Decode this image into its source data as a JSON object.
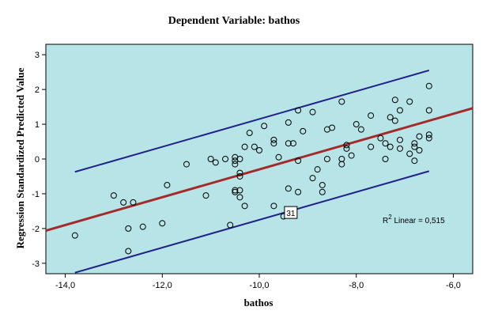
{
  "chart_data": {
    "type": "scatter",
    "title": "Dependent Variable: bathos",
    "xlabel": "bathos",
    "ylabel": "Regression Standardized Predicted Value",
    "xlim": [
      -14.4,
      -5.6
    ],
    "ylim": [
      -3.3,
      3.3
    ],
    "xticks": [
      "-14,0",
      "-12,0",
      "-10,0",
      "-8,0",
      "-6,0"
    ],
    "yticks": [
      "-3",
      "-2",
      "-1",
      "0",
      "1",
      "2",
      "3"
    ],
    "xtick_values": [
      -14,
      -12,
      -10,
      -8,
      -6
    ],
    "ytick_values": [
      -3,
      -2,
      -1,
      0,
      1,
      2,
      3
    ],
    "plot_background": "#b6e4e7",
    "fit_line_color": "#a52a2a",
    "ci_line_color": "#22208a",
    "fit_line": {
      "slope": 0.4,
      "intercept": 3.7
    },
    "upper_band": {
      "slope": 0.4,
      "intercept": 5.15
    },
    "lower_band": {
      "slope": 0.4,
      "intercept": 2.25
    },
    "r2_label": "R",
    "r2_sup": "2",
    "r2_rest": " Linear = 0,515",
    "labeled_point": {
      "label": "31",
      "x": -9.35,
      "y": -1.55
    },
    "points": [
      [
        -13.8,
        -2.2
      ],
      [
        -13.0,
        -1.05
      ],
      [
        -12.8,
        -1.25
      ],
      [
        -12.6,
        -1.25
      ],
      [
        -12.7,
        -2.0
      ],
      [
        -12.7,
        -2.65
      ],
      [
        -12.4,
        -1.95
      ],
      [
        -11.9,
        -0.75
      ],
      [
        -12.0,
        -1.85
      ],
      [
        -11.5,
        -0.15
      ],
      [
        -11.1,
        -1.05
      ],
      [
        -11.0,
        0.0
      ],
      [
        -10.9,
        -0.1
      ],
      [
        -10.7,
        0.0
      ],
      [
        -10.6,
        -1.9
      ],
      [
        -10.5,
        0.05
      ],
      [
        -10.5,
        -0.05
      ],
      [
        -10.5,
        -0.15
      ],
      [
        -10.5,
        -0.95
      ],
      [
        -10.5,
        -0.9
      ],
      [
        -10.4,
        -0.4
      ],
      [
        -10.4,
        -0.5
      ],
      [
        -10.4,
        -0.9
      ],
      [
        -10.4,
        -1.1
      ],
      [
        -10.4,
        0.0
      ],
      [
        -10.3,
        -1.35
      ],
      [
        -10.3,
        0.35
      ],
      [
        -10.2,
        0.75
      ],
      [
        -10.1,
        0.35
      ],
      [
        -10.0,
        0.25
      ],
      [
        -9.9,
        0.95
      ],
      [
        -9.7,
        0.55
      ],
      [
        -9.7,
        0.45
      ],
      [
        -9.7,
        -1.35
      ],
      [
        -9.6,
        0.05
      ],
      [
        -9.5,
        -1.65
      ],
      [
        -9.4,
        1.05
      ],
      [
        -9.4,
        0.45
      ],
      [
        -9.3,
        0.45
      ],
      [
        -9.4,
        -0.85
      ],
      [
        -9.2,
        1.4
      ],
      [
        -9.2,
        -0.05
      ],
      [
        -9.2,
        -0.95
      ],
      [
        -9.1,
        0.8
      ],
      [
        -8.9,
        1.35
      ],
      [
        -8.9,
        -0.55
      ],
      [
        -8.8,
        -0.3
      ],
      [
        -8.7,
        -0.75
      ],
      [
        -8.7,
        -0.95
      ],
      [
        -8.6,
        0.0
      ],
      [
        -8.6,
        0.85
      ],
      [
        -8.5,
        0.9
      ],
      [
        -8.3,
        1.65
      ],
      [
        -8.3,
        -0.15
      ],
      [
        -8.3,
        0.0
      ],
      [
        -8.2,
        0.4
      ],
      [
        -8.2,
        0.3
      ],
      [
        -8.1,
        0.1
      ],
      [
        -8.0,
        1.0
      ],
      [
        -7.9,
        0.85
      ],
      [
        -7.7,
        1.25
      ],
      [
        -7.7,
        0.35
      ],
      [
        -7.5,
        0.6
      ],
      [
        -7.4,
        0.45
      ],
      [
        -7.4,
        0.0
      ],
      [
        -7.3,
        1.2
      ],
      [
        -7.3,
        0.35
      ],
      [
        -7.2,
        1.7
      ],
      [
        -7.2,
        1.1
      ],
      [
        -7.1,
        1.4
      ],
      [
        -7.1,
        0.3
      ],
      [
        -7.1,
        0.55
      ],
      [
        -6.9,
        1.65
      ],
      [
        -6.9,
        0.15
      ],
      [
        -6.8,
        0.45
      ],
      [
        -6.8,
        0.35
      ],
      [
        -6.8,
        -0.05
      ],
      [
        -6.7,
        0.25
      ],
      [
        -6.7,
        0.65
      ],
      [
        -6.5,
        2.1
      ],
      [
        -6.5,
        1.4
      ],
      [
        -6.5,
        0.7
      ],
      [
        -6.5,
        0.6
      ]
    ]
  }
}
